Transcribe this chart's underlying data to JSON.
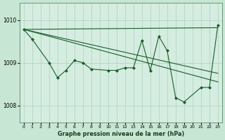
{
  "bg_color": "#c8e6d4",
  "plot_bg_color": "#d4ede0",
  "grid_color": "#b8d8c8",
  "line_color": "#1a5c2a",
  "title": "Graphe pression niveau de la mer (hPa)",
  "ylim": [
    1007.6,
    1010.4
  ],
  "xlim": [
    -0.5,
    23.5
  ],
  "yticks": [
    1008,
    1009,
    1010
  ],
  "xticks": [
    0,
    1,
    2,
    3,
    4,
    5,
    6,
    7,
    8,
    9,
    10,
    11,
    12,
    13,
    14,
    15,
    16,
    17,
    18,
    19,
    20,
    21,
    22,
    23
  ],
  "trend1_x": [
    0,
    23
  ],
  "trend1_y": [
    1009.78,
    1009.82
  ],
  "trend2_x": [
    0,
    23
  ],
  "trend2_y": [
    1009.78,
    1008.55
  ],
  "trend3_x": [
    0,
    23
  ],
  "trend3_y": [
    1009.78,
    1008.75
  ],
  "zigzag_x": [
    0,
    1,
    3,
    4,
    5,
    6,
    7,
    8,
    10,
    11,
    12,
    13,
    14,
    15,
    16,
    17,
    18,
    19,
    21,
    22,
    23
  ],
  "zigzag_y": [
    1009.78,
    1009.55,
    1009.0,
    1008.65,
    1008.82,
    1009.05,
    1009.0,
    1008.85,
    1008.82,
    1008.82,
    1008.88,
    1008.88,
    1009.52,
    1008.82,
    1009.62,
    1009.28,
    1008.18,
    1008.08,
    1008.42,
    1008.42,
    1009.88
  ]
}
